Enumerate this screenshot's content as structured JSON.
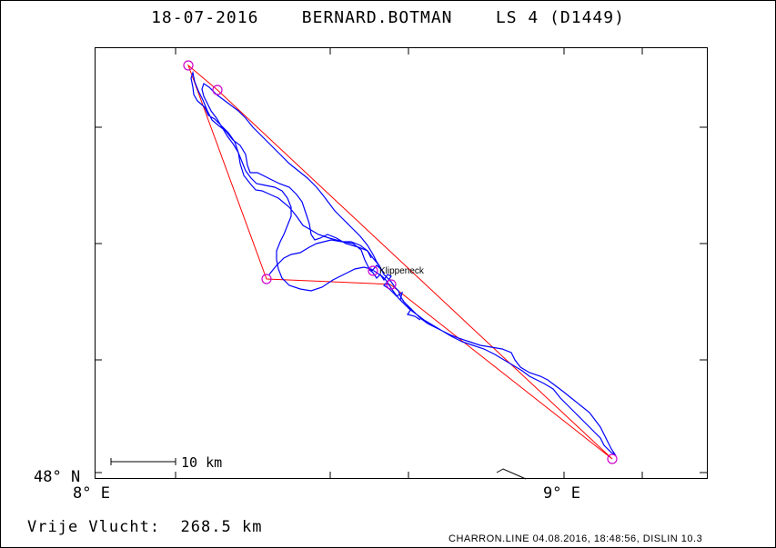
{
  "header": {
    "date": "18-07-2016",
    "pilot": "BERNARD.BOTMAN",
    "glider": "LS 4 (D1449)"
  },
  "axes": {
    "lat_label": "48° N",
    "lon_label_left": "8° E",
    "lon_label_right": "9° E"
  },
  "scale_bar": {
    "label": "10 km"
  },
  "waypoints": [
    {
      "name": "Klippeneck"
    }
  ],
  "footer": {
    "summary_label": "Vrije Vlucht:",
    "summary_value": "268.5 km",
    "credit": "CHARRON.LINE 04.08.2016, 18:48:56, DISLIN 10.3"
  },
  "colors": {
    "track": "#0000ff",
    "task": "#ff0000",
    "turnpoint": "#cc00cc",
    "frame": "#000000"
  }
}
